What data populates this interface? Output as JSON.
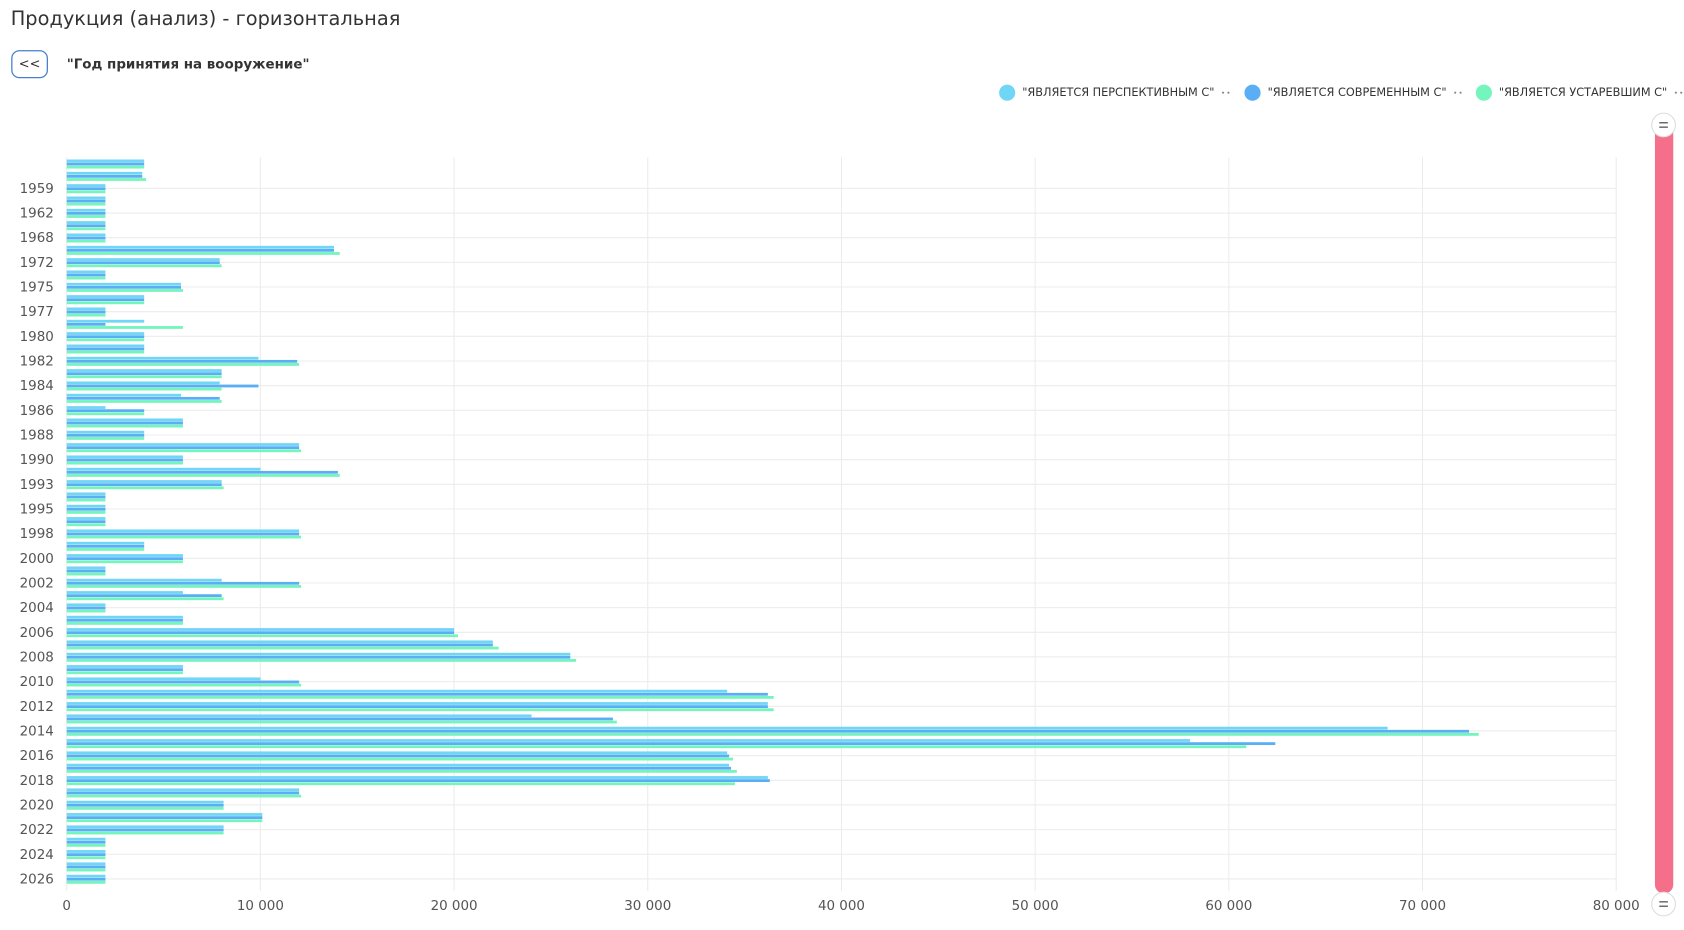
{
  "chart_data": {
    "type": "barh",
    "title": "Продукция (анализ) - горизонтальная",
    "back_button": "<<",
    "filter_label": "\"Год принятия на вооружение\"",
    "categories": [
      null,
      null,
      "1959",
      null,
      "1962",
      null,
      "1968",
      null,
      "1972",
      null,
      "1975",
      null,
      "1977",
      null,
      "1980",
      null,
      "1982",
      null,
      "1984",
      null,
      "1986",
      null,
      "1988",
      null,
      "1990",
      null,
      "1993",
      null,
      "1995",
      null,
      "1998",
      null,
      "2000",
      null,
      "2002",
      null,
      "2004",
      null,
      "2006",
      null,
      "2008",
      null,
      "2010",
      null,
      "2012",
      null,
      "2014",
      null,
      "2016",
      null,
      "2018",
      null,
      "2020",
      null,
      "2022",
      null,
      "2024",
      null,
      "2026"
    ],
    "series": [
      {
        "name": "\"ЯВЛЯЕТСЯ ПЕРСПЕКТИВНЫМ С\"",
        "color": "#6fd6f5",
        "values": [
          4000,
          3900,
          2000,
          2000,
          2000,
          2000,
          2000,
          13800,
          7900,
          2000,
          5900,
          4000,
          2000,
          4000,
          4000,
          4000,
          9900,
          8000,
          7900,
          5900,
          2000,
          6000,
          4000,
          12000,
          6000,
          10000,
          8000,
          2000,
          2000,
          2000,
          12000,
          4000,
          6000,
          2000,
          8000,
          6000,
          2000,
          6000,
          20000,
          22000,
          26000,
          6000,
          10000,
          34100,
          36200,
          24000,
          68200,
          58000,
          34100,
          34200,
          36200,
          12000,
          8100,
          10100,
          8100,
          2000,
          2000,
          2000,
          2000
        ]
      },
      {
        "name": "\"ЯВЛЯЕТСЯ СОВРЕМЕННЫМ С\"",
        "color": "#5aaef5",
        "values": [
          4000,
          3900,
          2000,
          2000,
          2000,
          2000,
          2000,
          13800,
          7900,
          2000,
          5900,
          4000,
          2000,
          2000,
          4000,
          4000,
          11900,
          8000,
          9900,
          7900,
          4000,
          6000,
          4000,
          12000,
          6000,
          14000,
          8000,
          2000,
          2000,
          2000,
          12000,
          4000,
          6000,
          2000,
          12000,
          8000,
          2000,
          6000,
          20000,
          22000,
          26000,
          6000,
          12000,
          36200,
          36200,
          28200,
          72400,
          62400,
          34200,
          34300,
          36300,
          12000,
          8100,
          10100,
          8100,
          2000,
          2000,
          2000,
          2000
        ]
      },
      {
        "name": "\"ЯВЛЯЕТСЯ УСТАРЕВШИМ С\"",
        "color": "#74f5bd",
        "values": [
          4000,
          4100,
          2000,
          2000,
          2000,
          2000,
          2000,
          14100,
          8000,
          2000,
          6000,
          4000,
          2000,
          6000,
          4000,
          4000,
          12000,
          8000,
          8000,
          8000,
          4000,
          6000,
          4000,
          12100,
          6000,
          14100,
          8100,
          2000,
          2000,
          2000,
          12100,
          4000,
          6000,
          2000,
          12100,
          8100,
          2000,
          6000,
          20200,
          22300,
          26300,
          6000,
          12100,
          36500,
          36500,
          28400,
          72900,
          60900,
          34400,
          34600,
          34500,
          12100,
          8100,
          10100,
          8100,
          2000,
          2000,
          2000,
          2000
        ]
      }
    ],
    "xlim": [
      0,
      80000
    ],
    "xticks": [
      0,
      {
        "value": 10000,
        "label": "10 000"
      },
      {
        "value": 20000,
        "label": "20 000"
      },
      {
        "value": 30000,
        "label": "30 000"
      },
      {
        "value": 40000,
        "label": "40 000"
      },
      {
        "value": 50000,
        "label": "50 000"
      },
      {
        "value": 60000,
        "label": "60 000"
      },
      {
        "value": 70000,
        "label": "70 000"
      },
      {
        "value": 80000,
        "label": "80 000"
      }
    ],
    "grid": true
  }
}
